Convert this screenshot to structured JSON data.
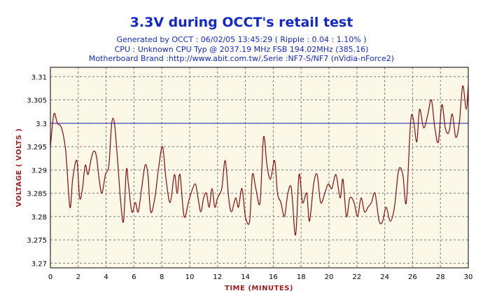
{
  "colors": {
    "background": "#ffffff",
    "plot_background": "#fcf8e8",
    "grid": "#7a7a7a",
    "title": "#1428c8",
    "series": "#8c0a0a",
    "reference": "#1428b4",
    "axis_label": "#a01e1e"
  },
  "chart_data": {
    "type": "line",
    "title": "3.3V during OCCT's retail test",
    "subtitle_lines": [
      "Generated by OCCT : 06/02/05 13:45:29 ( Ripple : 0.04 : 1.10% )",
      "CPU : Unknown CPU Typ @ 2037.19 MHz FSB 194.02MHz (385.16)",
      "Motherboard Brand :http://www.abit.com.tw/,Serie :NF7-S/NF7 (nVidia-nForce2)"
    ],
    "xlabel": "TIME (MINUTES)",
    "ylabel": "VOLTAGE ( VOLTS )",
    "xlim": [
      0,
      30
    ],
    "ylim": [
      3.269,
      3.312
    ],
    "xticks": [
      0,
      2,
      4,
      6,
      8,
      10,
      12,
      14,
      16,
      18,
      20,
      22,
      24,
      26,
      28,
      30
    ],
    "yticks": [
      3.27,
      3.275,
      3.28,
      3.285,
      3.29,
      3.295,
      3.3,
      3.305,
      3.31
    ],
    "ytick_labels": [
      "3.27",
      "3.275",
      "3.28",
      "3.285",
      "3.29",
      "3.295",
      "3.3",
      "3.305",
      "3.31"
    ],
    "grid": true,
    "reference_line": 3.3,
    "series": [
      {
        "x": [
          0,
          0.25,
          0.5,
          0.8,
          1.1,
          1.4,
          1.6,
          1.9,
          2.1,
          2.3,
          2.5,
          2.7,
          2.9,
          3.1,
          3.3,
          3.5,
          3.7,
          3.95,
          4.2,
          4.4,
          4.6,
          4.85,
          5.05,
          5.25,
          5.45,
          5.6,
          5.85,
          6.1,
          6.3,
          6.55,
          6.8,
          7.0,
          7.2,
          7.5,
          7.75,
          8.05,
          8.3,
          8.6,
          8.9,
          9.1,
          9.3,
          9.6,
          9.9,
          10.1,
          10.4,
          10.6,
          10.8,
          11.0,
          11.2,
          11.4,
          11.6,
          11.8,
          12.0,
          12.3,
          12.55,
          12.8,
          13.0,
          13.3,
          13.5,
          13.75,
          14.0,
          14.3,
          14.5,
          14.75,
          15.05,
          15.3,
          15.55,
          15.8,
          16.1,
          16.3,
          16.55,
          16.8,
          17.05,
          17.3,
          17.6,
          17.85,
          18.1,
          18.4,
          18.6,
          18.9,
          19.15,
          19.4,
          19.7,
          19.95,
          20.2,
          20.5,
          20.8,
          21.0,
          21.25,
          21.5,
          21.8,
          22.05,
          22.3,
          22.55,
          22.8,
          23.05,
          23.3,
          23.6,
          23.85,
          24.1,
          24.4,
          24.7,
          25.0,
          25.3,
          25.55,
          25.85,
          26.05,
          26.3,
          26.5,
          26.8,
          27.1,
          27.35,
          27.6,
          27.85,
          28.1,
          28.35,
          28.6,
          28.85,
          29.1,
          29.35,
          29.6,
          29.85,
          30.0
        ],
        "y": [
          3.295,
          3.302,
          3.3,
          3.299,
          3.294,
          3.282,
          3.288,
          3.292,
          3.284,
          3.286,
          3.291,
          3.289,
          3.292,
          3.294,
          3.293,
          3.288,
          3.285,
          3.289,
          3.291,
          3.3,
          3.3,
          3.291,
          3.283,
          3.279,
          3.29,
          3.287,
          3.281,
          3.283,
          3.281,
          3.286,
          3.291,
          3.289,
          3.281,
          3.284,
          3.29,
          3.295,
          3.288,
          3.283,
          3.289,
          3.285,
          3.289,
          3.28,
          3.283,
          3.285,
          3.287,
          3.284,
          3.281,
          3.284,
          3.285,
          3.282,
          3.286,
          3.282,
          3.284,
          3.286,
          3.292,
          3.284,
          3.281,
          3.284,
          3.282,
          3.286,
          3.28,
          3.279,
          3.289,
          3.286,
          3.283,
          3.297,
          3.291,
          3.288,
          3.292,
          3.285,
          3.283,
          3.28,
          3.285,
          3.286,
          3.276,
          3.289,
          3.283,
          3.285,
          3.279,
          3.287,
          3.289,
          3.283,
          3.285,
          3.287,
          3.286,
          3.289,
          3.284,
          3.288,
          3.28,
          3.284,
          3.283,
          3.28,
          3.284,
          3.281,
          3.282,
          3.283,
          3.285,
          3.279,
          3.279,
          3.282,
          3.279,
          3.282,
          3.29,
          3.289,
          3.283,
          3.3,
          3.301,
          3.296,
          3.303,
          3.299,
          3.302,
          3.305,
          3.299,
          3.296,
          3.304,
          3.299,
          3.298,
          3.302,
          3.297,
          3.3,
          3.308,
          3.303,
          3.308
        ]
      }
    ]
  }
}
